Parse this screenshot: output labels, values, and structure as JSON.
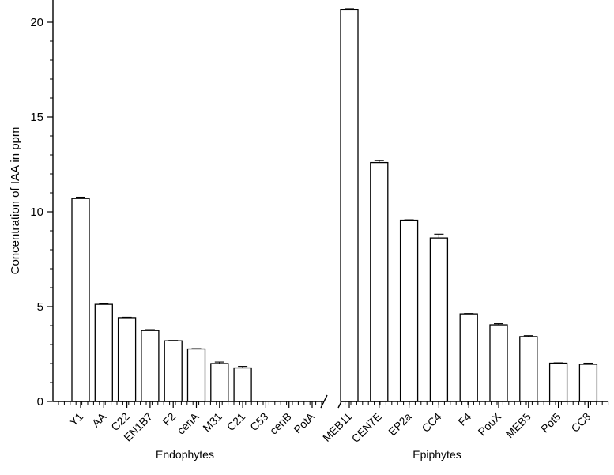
{
  "chart_data": {
    "type": "bar",
    "title": "",
    "ylabel": "Concentration of IAA in ppm",
    "ylim": [
      0,
      21.2
    ],
    "yticks": [
      0,
      5,
      10,
      15,
      20
    ],
    "axis_break": "between PotA and MEB11",
    "bar_fill": "#ffffff",
    "bar_stroke": "#000000",
    "groups": [
      {
        "label": "Endophytes",
        "categories": [
          "Y1",
          "AA",
          "C22",
          "EN1B7",
          "F2",
          "cenA",
          "M31",
          "C21",
          "C53",
          "cenB",
          "PotA"
        ],
        "values": [
          10.7,
          5.12,
          4.42,
          3.74,
          3.2,
          2.77,
          2.0,
          1.77,
          0,
          0,
          0
        ],
        "errors": [
          0.07,
          0.03,
          0.02,
          0.05,
          0.02,
          0.02,
          0.08,
          0.08,
          0,
          0,
          0
        ]
      },
      {
        "label": "Epiphytes",
        "categories": [
          "MEB11",
          "CEN7E",
          "EP2a",
          "CC4",
          "F4",
          "PouX",
          "MEB5",
          "Pot5",
          "CC8"
        ],
        "values": [
          20.65,
          12.6,
          9.56,
          8.62,
          4.62,
          4.04,
          3.42,
          2.02,
          1.96
        ],
        "errors": [
          0.06,
          0.1,
          0.02,
          0.2,
          0.02,
          0.06,
          0.05,
          0.02,
          0.06
        ]
      }
    ]
  }
}
